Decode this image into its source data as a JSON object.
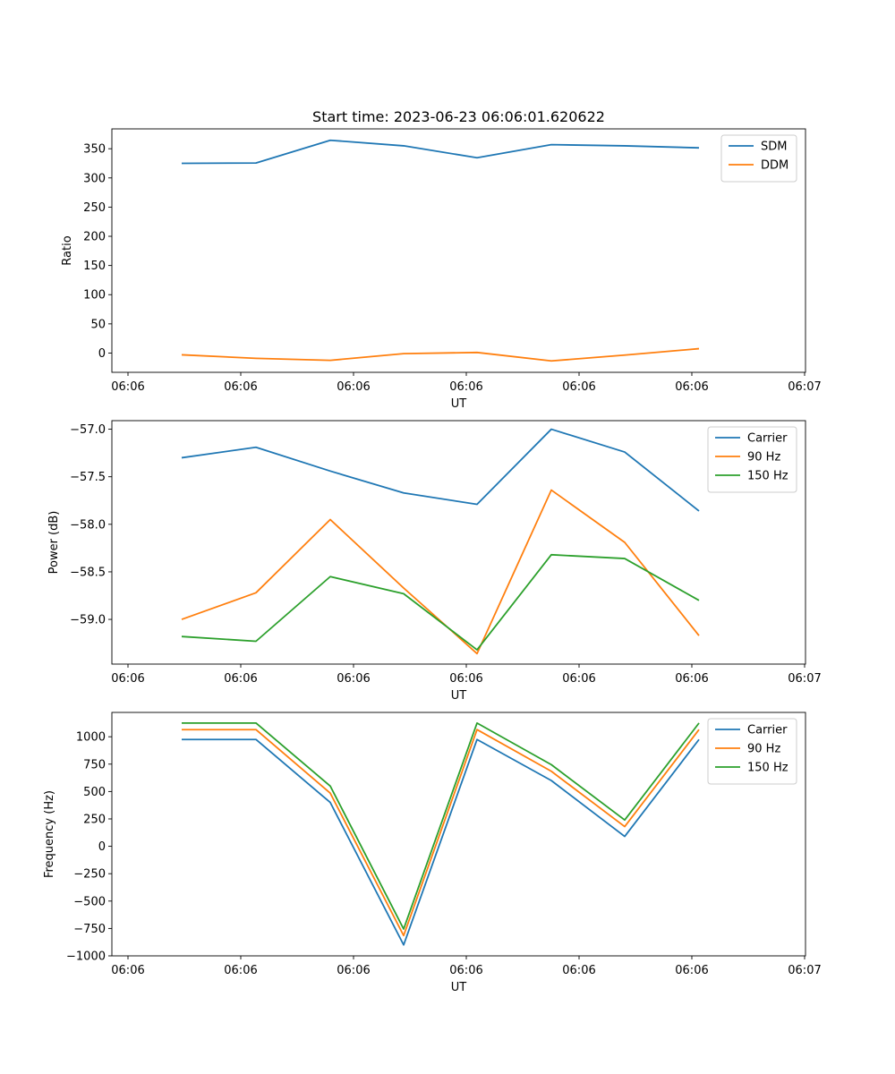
{
  "chart_data": [
    {
      "type": "line",
      "title": "Start time: 2023-06-23 06:06:01.620622",
      "xlabel": "UT",
      "ylabel": "Ratio",
      "x_tick_labels": [
        "06:06",
        "06:06",
        "06:06",
        "06:06",
        "06:06",
        "06:06",
        "06:07"
      ],
      "yticks": [
        0,
        50,
        100,
        150,
        200,
        250,
        300,
        350
      ],
      "ylim": [
        -33,
        384
      ],
      "grid": false,
      "legend_placement": "top-right",
      "series": [
        {
          "name": "SDM",
          "color": "#1f77b4",
          "values": [
            325,
            325.5,
            364.5,
            355,
            334.5,
            357,
            355,
            351.5
          ]
        },
        {
          "name": "DDM",
          "color": "#ff7f0e",
          "values": [
            -3,
            -9,
            -12.5,
            -1,
            1,
            -13.5,
            -3.5,
            7.5
          ]
        }
      ]
    },
    {
      "type": "line",
      "title": "",
      "xlabel": "UT",
      "ylabel": "Power (dB)",
      "x_tick_labels": [
        "06:06",
        "06:06",
        "06:06",
        "06:06",
        "06:06",
        "06:06",
        "06:07"
      ],
      "yticks": [
        -59.0,
        -58.5,
        -58.0,
        -57.5,
        -57.0
      ],
      "ytick_labels": [
        "−59.0",
        "−58.5",
        "−58.0",
        "−57.5",
        "−57.0"
      ],
      "ylim": [
        -59.47,
        -56.91
      ],
      "grid": false,
      "legend_placement": "top-right",
      "series": [
        {
          "name": "Carrier",
          "color": "#1f77b4",
          "values": [
            -57.3,
            -57.19,
            -57.44,
            -57.67,
            -57.79,
            -57.0,
            -57.24,
            -57.86
          ]
        },
        {
          "name": "90 Hz",
          "color": "#ff7f0e",
          "values": [
            -59.0,
            -58.72,
            -57.95,
            -58.67,
            -59.36,
            -57.64,
            -58.19,
            -59.17
          ]
        },
        {
          "name": "150 Hz",
          "color": "#2ca02c",
          "values": [
            -59.18,
            -59.23,
            -58.55,
            -58.73,
            -59.32,
            -58.32,
            -58.36,
            -58.8
          ]
        }
      ]
    },
    {
      "type": "line",
      "title": "",
      "xlabel": "UT",
      "ylabel": "Frequency (Hz)",
      "x_tick_labels": [
        "06:06",
        "06:06",
        "06:06",
        "06:06",
        "06:06",
        "06:06",
        "06:07"
      ],
      "yticks": [
        -1000,
        -750,
        -500,
        -250,
        0,
        250,
        500,
        750,
        1000
      ],
      "ytick_labels": [
        "−1000",
        "−750",
        "−500",
        "−250",
        "0",
        "250",
        "500",
        "750",
        "1000"
      ],
      "ylim": [
        -1000,
        1222
      ],
      "grid": false,
      "legend_placement": "top-right",
      "series": [
        {
          "name": "Carrier",
          "color": "#1f77b4",
          "values": [
            975,
            975,
            400,
            -900,
            975,
            600,
            90,
            975
          ]
        },
        {
          "name": "90 Hz",
          "color": "#ff7f0e",
          "values": [
            1065,
            1065,
            485,
            -815,
            1065,
            685,
            180,
            1065
          ]
        },
        {
          "name": "150 Hz",
          "color": "#2ca02c",
          "values": [
            1125,
            1125,
            550,
            -755,
            1125,
            745,
            240,
            1125
          ]
        }
      ]
    }
  ]
}
